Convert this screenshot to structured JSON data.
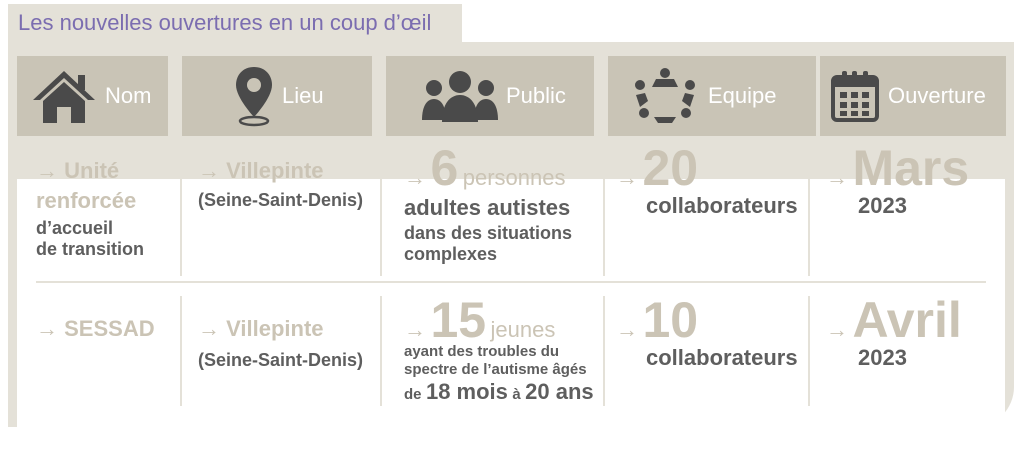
{
  "title": "Les nouvelles ouvertures en un coup d’œil",
  "headers": [
    "Nom",
    "Lieu",
    "Public",
    "Equipe",
    "Ouverture"
  ],
  "arrow": "→",
  "rows": [
    {
      "nom_line1": "Unité",
      "nom_line2": "renforcée",
      "nom_line3": "d’accueil",
      "nom_line4": "de  transition",
      "lieu_city": "Villepinte",
      "lieu_dept": "(Seine-Saint-Denis)",
      "public_number": "6",
      "public_unit": "personnes",
      "public_line1": "adultes autistes",
      "public_line2": "dans des situations",
      "public_line3": "complexes",
      "equipe_number": "20",
      "equipe_label": "collaborateurs",
      "ouverture_month": "Mars",
      "ouverture_year": "2023"
    },
    {
      "nom_line1": "SESSAD",
      "lieu_city": "Villepinte",
      "lieu_dept": "(Seine-Saint-Denis)",
      "public_number": "15",
      "public_unit": "jeunes",
      "public_line1": "ayant des troubles du",
      "public_line2": "spectre de l’autisme âgés",
      "public_de": "de",
      "public_age1": "18 mois",
      "public_a": "à",
      "public_age2": "20 ans",
      "equipe_number": "10",
      "equipe_label": "collaborateurs",
      "ouverture_month": "Avril",
      "ouverture_year": "2023"
    }
  ],
  "icons": [
    "house-icon",
    "map-pin-icon",
    "people-icon",
    "team-circle-icon",
    "calendar-icon"
  ],
  "colors": {
    "title_text": "#7b6db0",
    "frame": "#e4e1d8",
    "header": "#c9c4b6",
    "accent_text": "#cbc4b5",
    "dark_text": "#5e5e5e"
  }
}
